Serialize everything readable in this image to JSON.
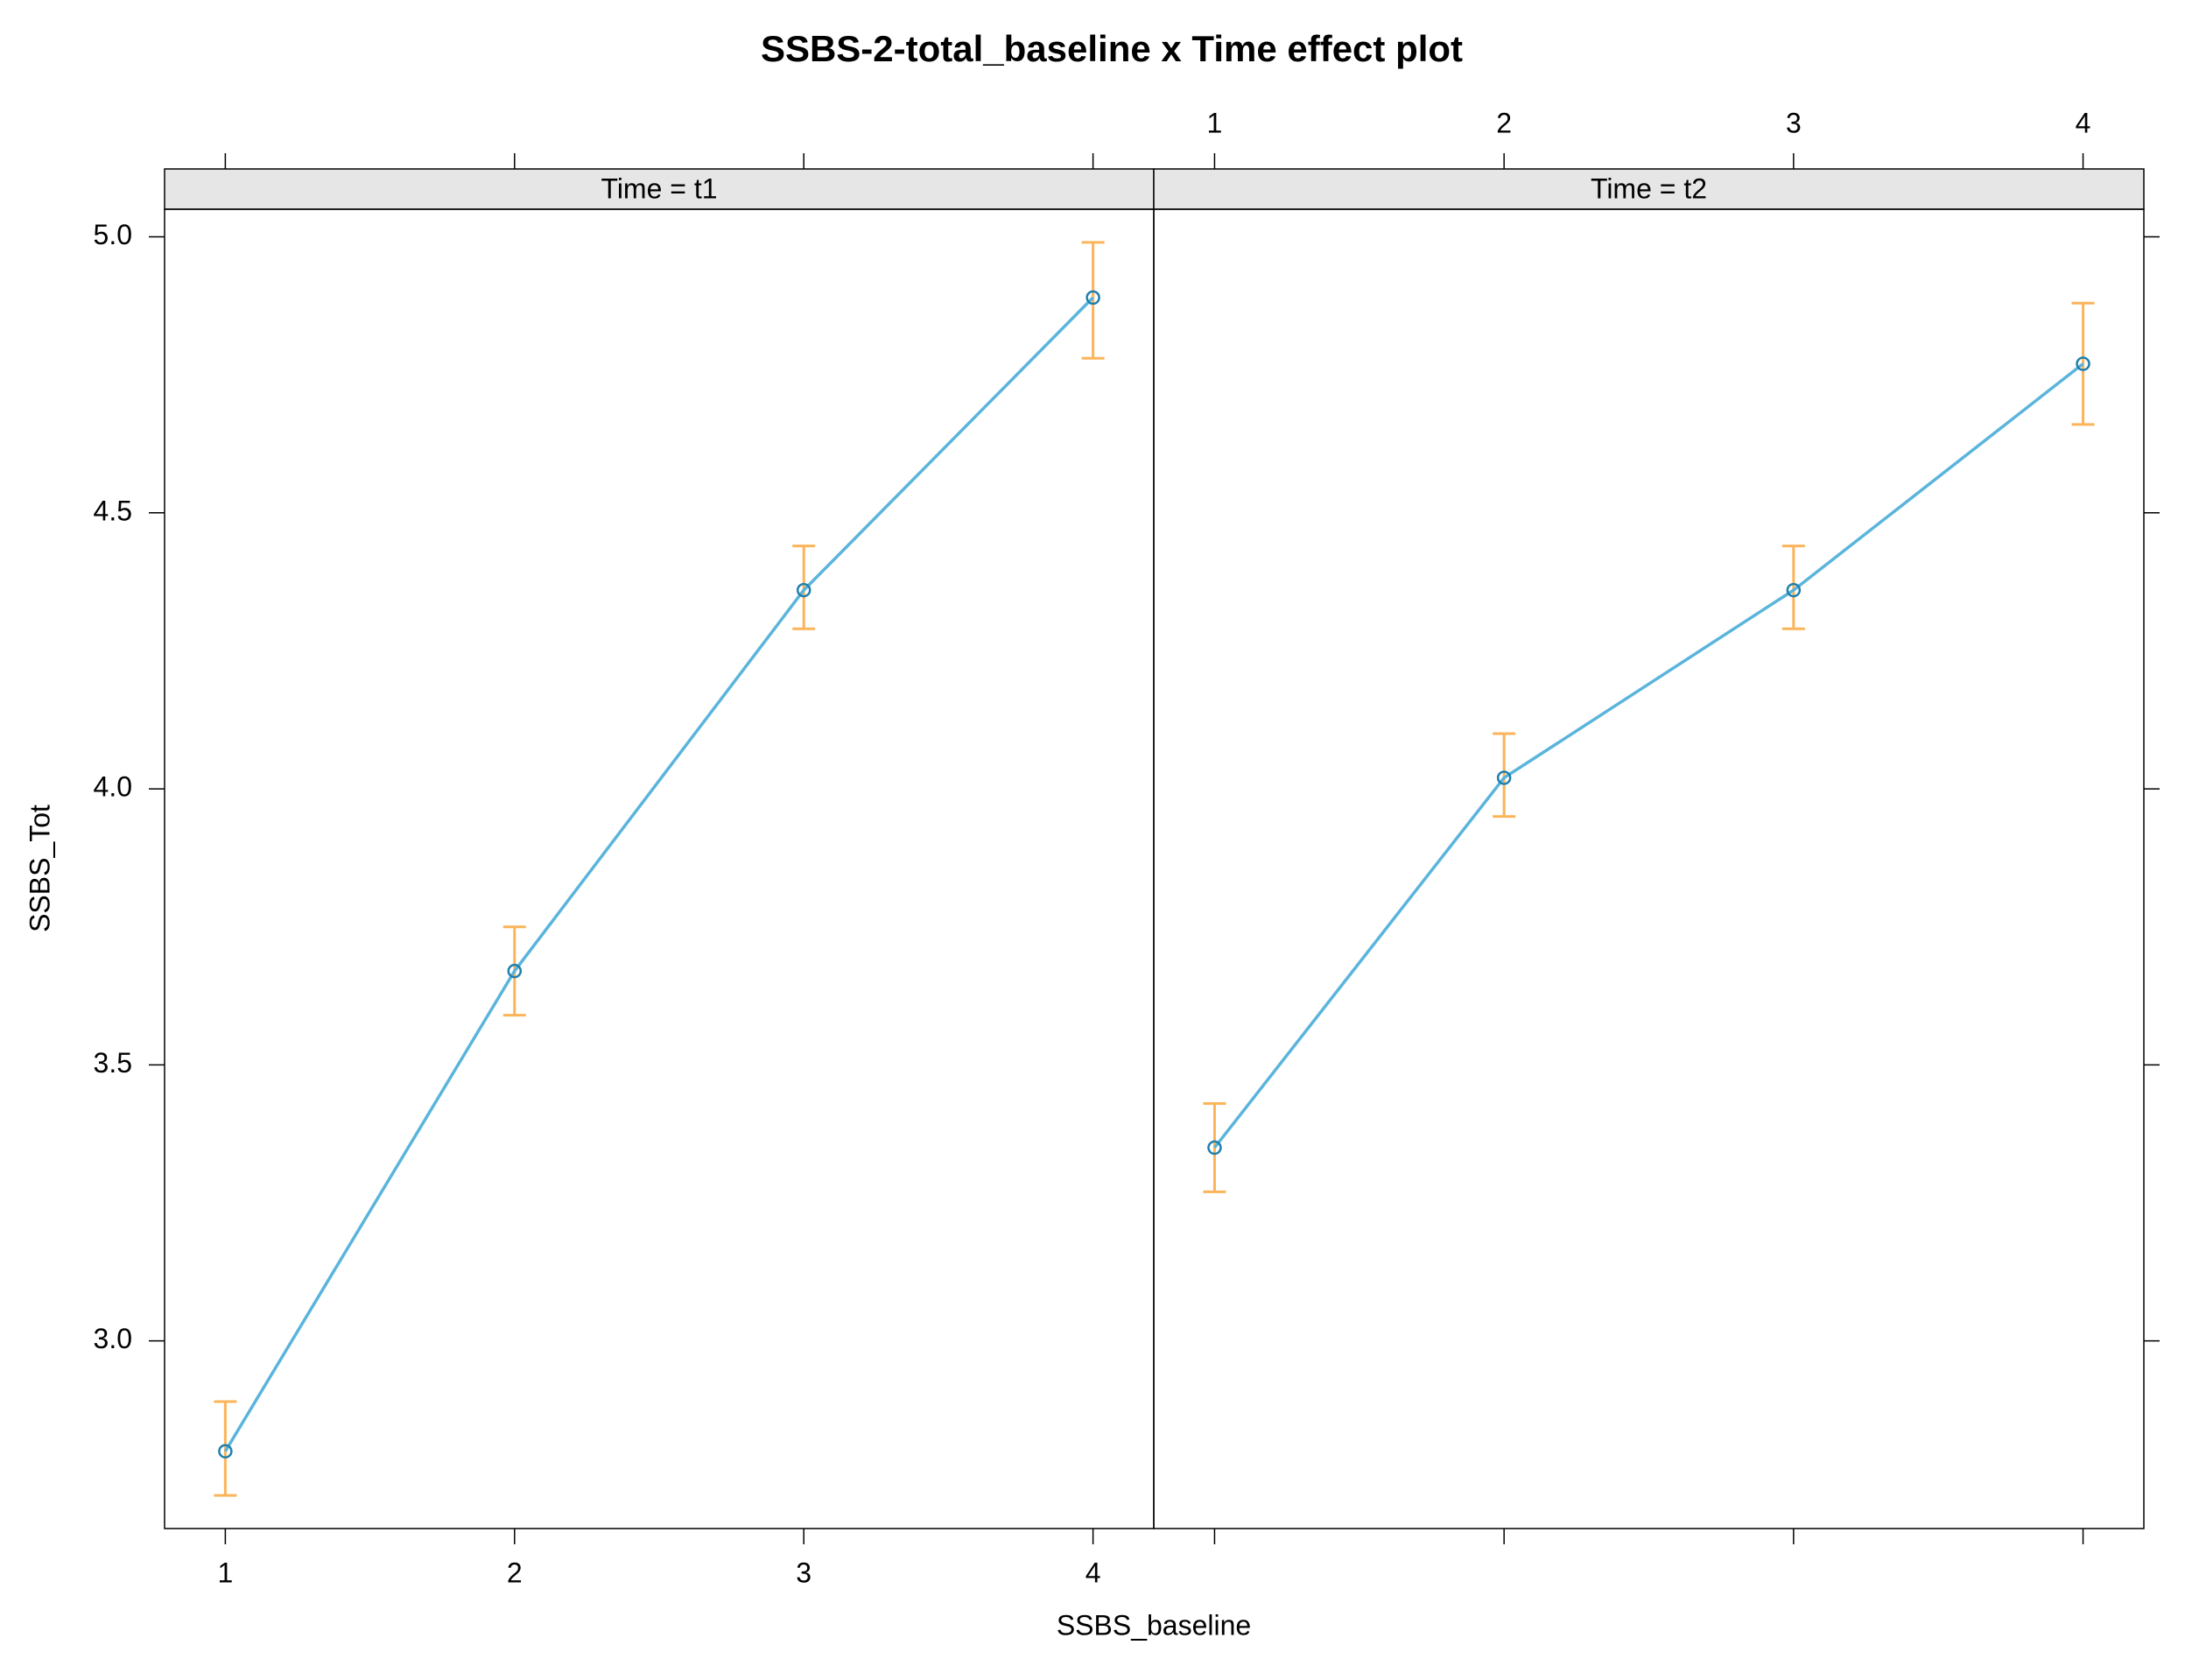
{
  "chart_data": {
    "type": "line",
    "title": "SSBS-2-total_baseline x Time effect plot",
    "xlabel": "SSBS_baseline",
    "ylabel": "SSBS_Tot",
    "x": [
      1,
      2,
      3,
      4
    ],
    "xlim": [
      0.79,
      4.21
    ],
    "xticks": [
      1,
      2,
      3,
      4
    ],
    "ylim": [
      2.66,
      5.05
    ],
    "yticks": [
      {
        "value": 3,
        "label": "3.0"
      },
      3.5,
      {
        "value": 4,
        "label": "4.0"
      },
      4.5,
      {
        "value": 5,
        "label": "5.0"
      }
    ],
    "color": "#5ab4dc",
    "error_color": "#fbb45a",
    "strip_color": "#e6e6e6",
    "panels": [
      {
        "strip": "Time = t1",
        "values": [
          2.8,
          3.67,
          4.36,
          4.89
        ],
        "lower": [
          2.72,
          3.59,
          4.29,
          4.78
        ],
        "upper": [
          2.89,
          3.75,
          4.44,
          4.99
        ]
      },
      {
        "strip": "Time = t2",
        "values": [
          3.35,
          4.02,
          4.36,
          4.77
        ],
        "lower": [
          3.27,
          3.95,
          4.29,
          4.66
        ],
        "upper": [
          3.43,
          4.1,
          4.44,
          4.88
        ]
      }
    ]
  }
}
